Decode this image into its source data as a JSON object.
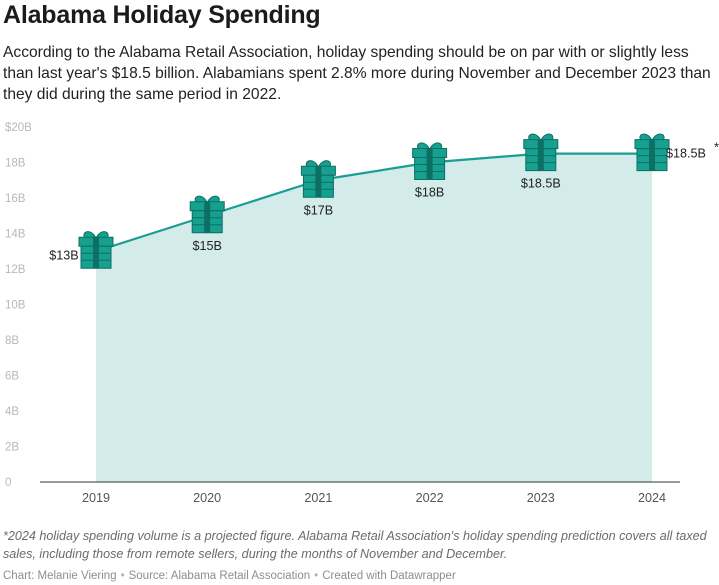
{
  "title": "Alabama Holiday Spending",
  "subtitle": "According to the Alabama Retail Association, holiday spending should be on par with or slightly less than last year's $18.5 billion. Alabamians spent 2.8% more during November and December 2023 than they did during the same period in 2022.",
  "note": "*2024 holiday spending volume is a projected figure. Alabama Retail Association's holiday spending prediction covers all taxed sales, including those from remote sellers, during the months of November and December.",
  "credits": {
    "chart_by": "Chart: Melanie Viering",
    "source": "Source: Alabama Retail Association",
    "tool": "Created with Datawrapper",
    "separator": "•"
  },
  "colors": {
    "line": "#1a9e93",
    "area": "#d3ebe9",
    "gift": "#16a08f",
    "gift_dark": "#0d6f65"
  },
  "chart_data": {
    "type": "area",
    "title": "Alabama Holiday Spending",
    "xlabel": "",
    "ylabel": "",
    "unit": "billion USD",
    "categories": [
      "2019",
      "2020",
      "2021",
      "2022",
      "2023",
      "2024"
    ],
    "values": [
      13,
      15,
      17,
      18,
      18.5,
      18.5
    ],
    "data_labels": [
      "$13B",
      "$15B",
      "$17B",
      "$18B",
      "$18.5B",
      "$18.5B"
    ],
    "annotation_marker": "*",
    "annotated_category": "2024",
    "ylim": [
      0,
      20
    ],
    "yticks": [
      0,
      2,
      4,
      6,
      8,
      10,
      12,
      14,
      16,
      18,
      20
    ],
    "ytick_labels": [
      "0",
      "2B",
      "4B",
      "6B",
      "8B",
      "10B",
      "12B",
      "14B",
      "16B",
      "18B",
      "$20B"
    ],
    "grid": false,
    "marker_icon": "gift-icon"
  }
}
